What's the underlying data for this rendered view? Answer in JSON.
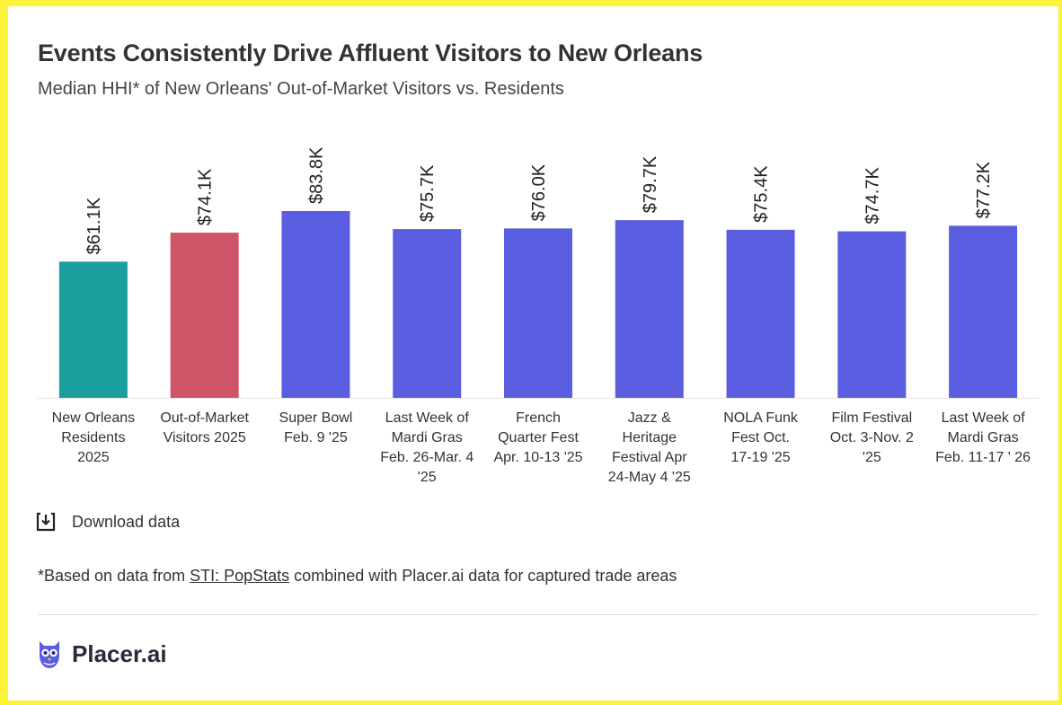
{
  "header": {
    "title": "Events Consistently Drive Affluent Visitors to New Orleans",
    "subtitle": "Median HHI* of New Orleans' Out-of-Market Visitors vs. Residents"
  },
  "chart_data": {
    "type": "bar",
    "title": "Events Consistently Drive Affluent Visitors to New Orleans",
    "subtitle": "Median HHI* of New Orleans' Out-of-Market Visitors vs. Residents",
    "xlabel": "",
    "ylabel": "",
    "ylim": [
      0,
      90000
    ],
    "grid": false,
    "legend": "none",
    "categories": [
      [
        "New Orleans",
        "Residents",
        "2025"
      ],
      [
        "Out-of-Market",
        "Visitors 2025"
      ],
      [
        "Super Bowl",
        "Feb. 9 '25"
      ],
      [
        "Last Week of",
        "Mardi Gras",
        "Feb. 26-Mar. 4",
        "'25"
      ],
      [
        "French",
        "Quarter Fest",
        "Apr. 10-13 '25"
      ],
      [
        "Jazz &",
        "Heritage",
        "Festival Apr",
        "24-May 4 '25"
      ],
      [
        "NOLA Funk",
        "Fest Oct.",
        "17-19 '25"
      ],
      [
        "Film Festival",
        "Oct. 3-Nov. 2",
        "'25"
      ],
      [
        "Last Week of",
        "Mardi Gras",
        "Feb. 11-17 ' 26"
      ]
    ],
    "values": [
      61100,
      74100,
      83800,
      75700,
      76000,
      79700,
      75400,
      74700,
      77200
    ],
    "value_labels": [
      "$61.1K",
      "$74.1K",
      "$83.8K",
      "$75.7K",
      "$76.0K",
      "$79.7K",
      "$75.4K",
      "$74.7K",
      "$77.2K"
    ],
    "colors": [
      "#1a9e9e",
      "#d05468",
      "#5b5de0",
      "#5b5de0",
      "#5b5de0",
      "#5b5de0",
      "#5b5de0",
      "#5b5de0",
      "#5b5de0"
    ]
  },
  "download": {
    "label": "Download data",
    "icon": "download-icon"
  },
  "footnote": {
    "prefix": "*Based on data from ",
    "link": "STI: PopStats",
    "suffix": " combined with Placer.ai data for captured trade areas"
  },
  "brand": {
    "name": "Placer.ai",
    "icon": "owl-logo-icon",
    "color": "#5b5de0"
  }
}
